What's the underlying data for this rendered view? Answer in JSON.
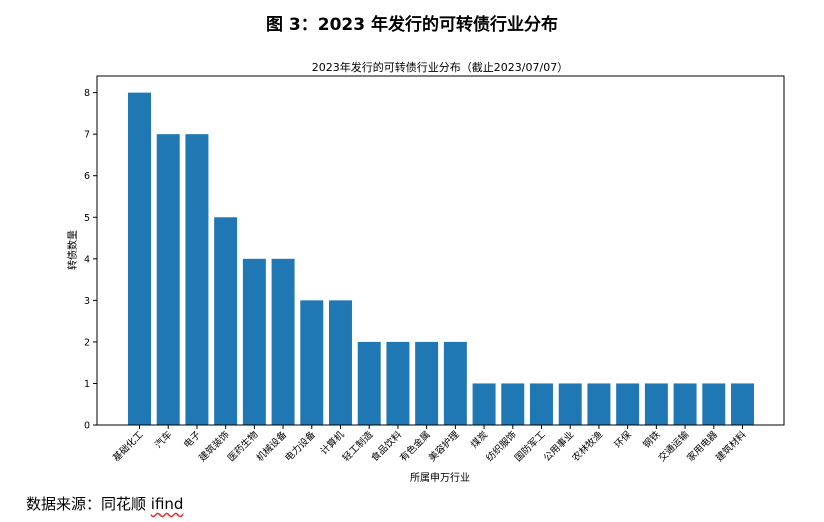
{
  "figure_title": "图 3：2023 年发行的可转债行业分布",
  "source_prefix": "数据来源：同花顺 ",
  "source_tail": "ifind",
  "chart_data": {
    "type": "bar",
    "title": "2023年发行的可转债行业分布（截止2023/07/07）",
    "xlabel": "所属申万行业",
    "ylabel": "转债数量",
    "categories": [
      "基础化工",
      "汽车",
      "电子",
      "建筑装饰",
      "医药生物",
      "机械设备",
      "电力设备",
      "计算机",
      "轻工制造",
      "食品饮料",
      "有色金属",
      "美容护理",
      "煤炭",
      "纺织服饰",
      "国防军工",
      "公用事业",
      "农林牧渔",
      "环保",
      "钢铁",
      "交通运输",
      "家用电器",
      "建筑材料"
    ],
    "values": [
      8,
      7,
      7,
      5,
      4,
      4,
      3,
      3,
      2,
      2,
      2,
      2,
      1,
      1,
      1,
      1,
      1,
      1,
      1,
      1,
      1,
      1
    ],
    "ylim": [
      0,
      8.4
    ],
    "yticks": [
      0,
      1,
      2,
      3,
      4,
      5,
      6,
      7,
      8
    ],
    "bar_color": "#1f77b4",
    "grid": false,
    "legend": "none"
  }
}
